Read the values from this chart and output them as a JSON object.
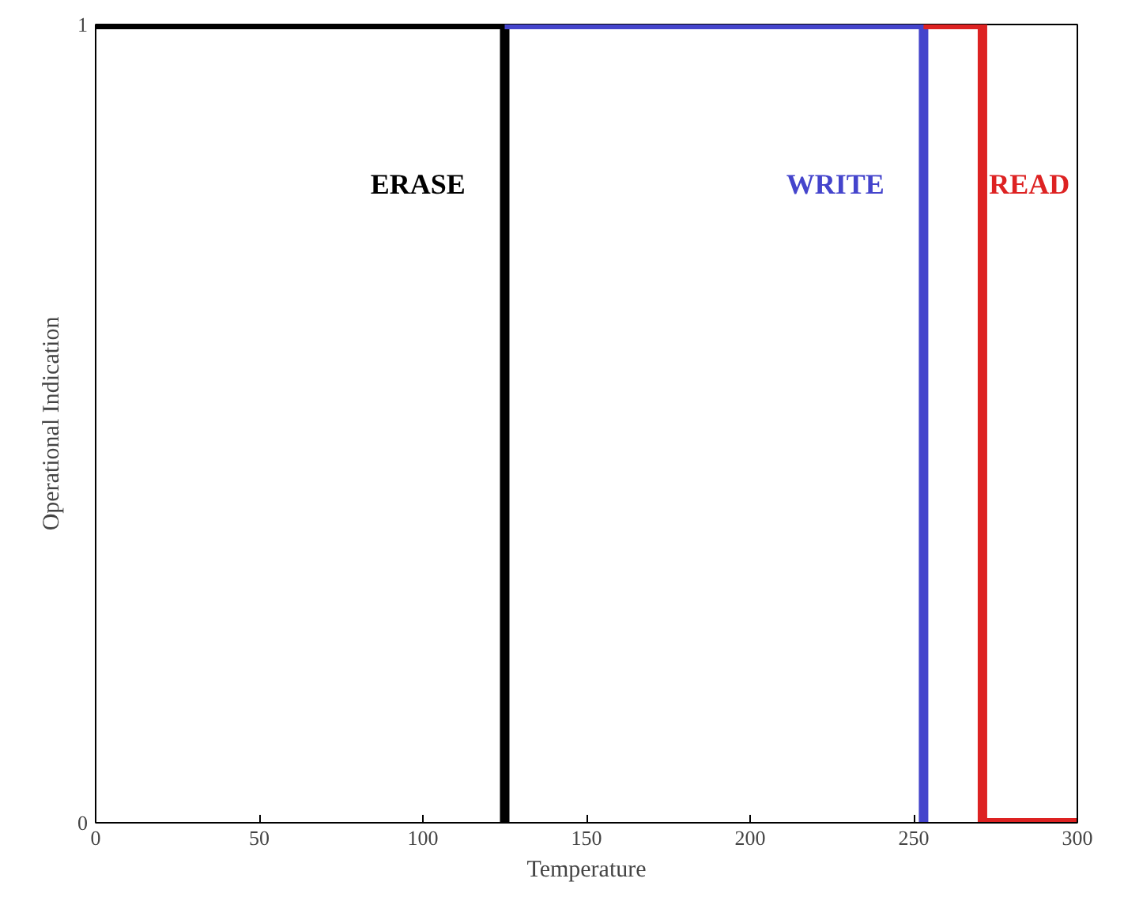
{
  "chart_data": {
    "type": "line",
    "xlabel": "Temperature",
    "ylabel": "Operational Indication",
    "xlim": [
      0,
      300
    ],
    "ylim": [
      0,
      1
    ],
    "xticks": [
      0,
      50,
      100,
      150,
      200,
      250,
      300
    ],
    "yticks": [
      0,
      1
    ],
    "grid": false,
    "line_style": "solid",
    "marker": "none",
    "series": [
      {
        "name": "ERASE",
        "color": "#000000",
        "x": [
          0,
          125,
          125
        ],
        "values": [
          1,
          1,
          0
        ]
      },
      {
        "name": "WRITE",
        "color": "#4444cc",
        "x": [
          125,
          253,
          253
        ],
        "values": [
          1,
          1,
          0
        ]
      },
      {
        "name": "READ",
        "color": "#dd2222",
        "x": [
          253,
          271,
          271,
          300
        ],
        "values": [
          1,
          1,
          0,
          0
        ]
      }
    ]
  }
}
